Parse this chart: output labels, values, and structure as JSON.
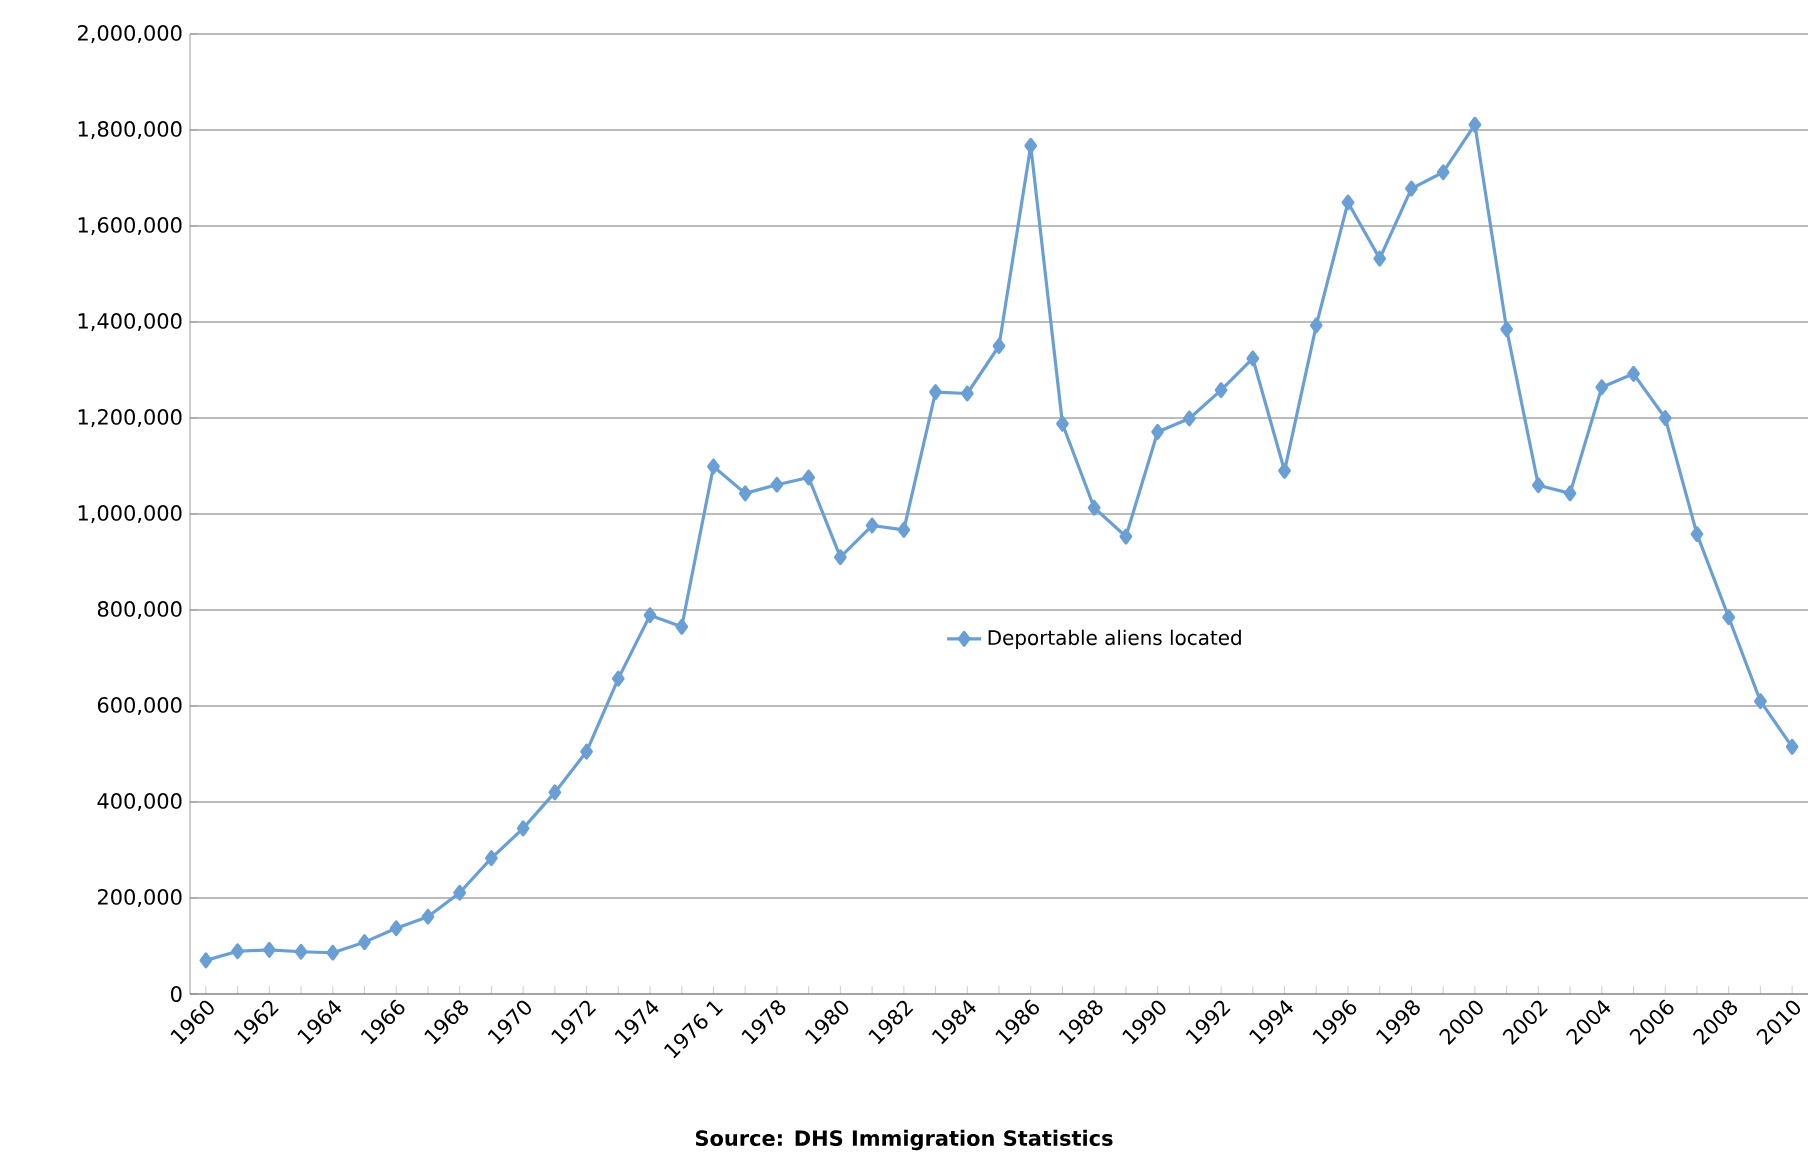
{
  "chart_data": {
    "type": "line",
    "categories": [
      "1960",
      null,
      "1962",
      null,
      "1964",
      null,
      "1966",
      null,
      "1968",
      null,
      "1970",
      null,
      "1972",
      null,
      "1974",
      null,
      "1976 1",
      null,
      "1978",
      null,
      "1980",
      null,
      "1982",
      null,
      "1984",
      null,
      "1986",
      null,
      "1988",
      null,
      "1990",
      null,
      "1992",
      null,
      "1994",
      null,
      "1996",
      null,
      "1998",
      null,
      "2000",
      null,
      "2002",
      null,
      "2004",
      null,
      "2006",
      null,
      "2008",
      null,
      "2010"
    ],
    "series": [
      {
        "name": "Deportable aliens located",
        "color": "#6a9fd4",
        "values": [
          70000,
          89000,
          92000,
          88000,
          86000,
          108000,
          137000,
          161000,
          211000,
          283000,
          345000,
          420000,
          505000,
          657000,
          789000,
          765000,
          1099000,
          1043000,
          1061000,
          1076000,
          910000,
          976000,
          967000,
          1254000,
          1251000,
          1350000,
          1767000,
          1188000,
          1013000,
          953000,
          1171000,
          1199000,
          1258000,
          1324000,
          1090000,
          1393000,
          1649000,
          1532000,
          1678000,
          1712000,
          1811000,
          1385000,
          1060000,
          1043000,
          1264000,
          1292000,
          1200000,
          958000,
          785000,
          610000,
          515000
        ]
      }
    ],
    "ylim": [
      0,
      2000000
    ],
    "yticks": [
      {
        "value": 0,
        "label": "0"
      },
      {
        "value": 200000,
        "label": "200,000"
      },
      {
        "value": 400000,
        "label": "400,000"
      },
      {
        "value": 600000,
        "label": "600,000"
      },
      {
        "value": 800000,
        "label": "800,000"
      },
      {
        "value": 1000000,
        "label": "1,000,000"
      },
      {
        "value": 1200000,
        "label": "1,200,000"
      },
      {
        "value": 1400000,
        "label": "1,400,000"
      },
      {
        "value": 1600000,
        "label": "1,600,000"
      },
      {
        "value": 1800000,
        "label": "1,800,000"
      },
      {
        "value": 2000000,
        "label": "2,000,000"
      }
    ],
    "grid": "y",
    "legend": "center",
    "marker": "diamond",
    "line_style": "solid",
    "annotations": [
      "Source: DHS Immigration Statistics"
    ]
  }
}
